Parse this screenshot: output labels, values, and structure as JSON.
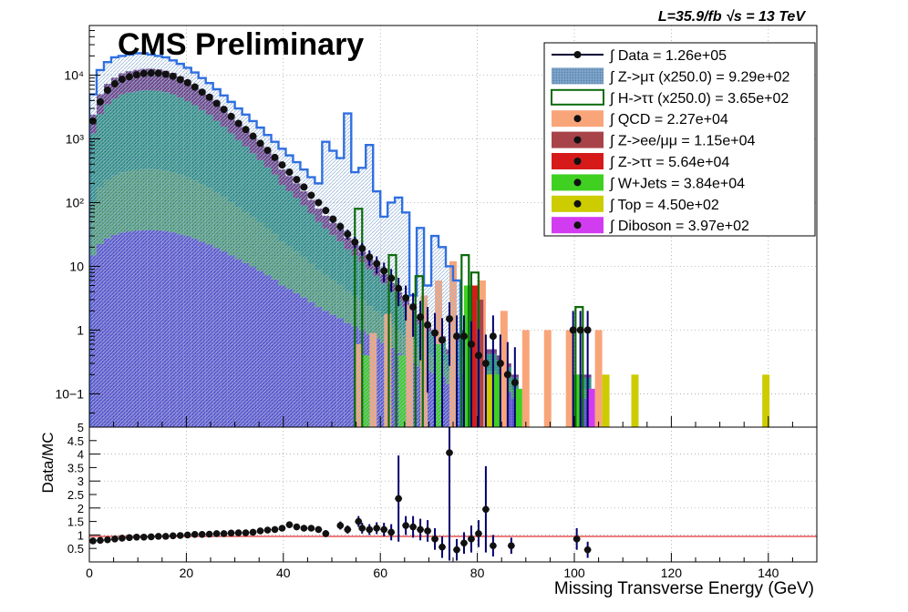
{
  "header": {
    "cms_label": "CMS Preliminary",
    "lumi_label": "L=35.9/fb  √s = 13 TeV"
  },
  "chart_data": [
    {
      "type": "bar",
      "panel": "main",
      "yscale": "log",
      "ylim": [
        0.03,
        60000
      ],
      "xlim": [
        0,
        150
      ],
      "bin_width": 1.5,
      "y_ticks": [
        "10−1",
        "1",
        "10",
        "10²",
        "10³",
        "10⁴"
      ],
      "grid": true,
      "legend_position": "top-right",
      "legend": [
        {
          "label": "∫ Data = 1.26e+05",
          "style": "data",
          "color": "#000033"
        },
        {
          "label": "∫ Z->μτ (x250.0) = 9.29e+02",
          "style": "hatch",
          "color": "#7ba3c7"
        },
        {
          "label": "∫ H->ττ (x250.0) = 3.65e+02",
          "style": "line",
          "color": "#0b6b0b"
        },
        {
          "label": "∫ QCD = 2.27e+04",
          "style": "fill",
          "color": "#f9a57a"
        },
        {
          "label": "∫ Z->ee/μμ = 1.15e+04",
          "style": "fill",
          "color": "#a8434a"
        },
        {
          "label": "∫ Z->ττ = 5.64e+04",
          "style": "fill",
          "color": "#d61a1a"
        },
        {
          "label": "∫ W+Jets = 3.84e+04",
          "style": "fill",
          "color": "#3fd021"
        },
        {
          "label": "∫ Top = 4.50e+02",
          "style": "fill",
          "color": "#cccc00"
        },
        {
          "label": "∫ Diboson = 3.97e+02",
          "style": "fill",
          "color": "#d23cf0"
        }
      ],
      "stack_fill": {
        "color_bottom": "#6a5ed6",
        "color_middle": "#5aa57a",
        "color_top": "#3a9a86",
        "color_upper": "#7a4a8a"
      },
      "series": [
        {
          "name": "Data",
          "x": [
            0.75,
            2.25,
            3.75,
            5.25,
            6.75,
            8.25,
            9.75,
            11.25,
            12.75,
            14.25,
            15.75,
            17.25,
            18.75,
            20.25,
            21.75,
            23.25,
            24.75,
            26.25,
            27.75,
            29.25,
            30.75,
            32.25,
            33.75,
            35.25,
            36.75,
            38.25,
            39.75,
            41.25,
            42.75,
            44.25,
            45.75,
            47.25,
            48.75,
            50.25,
            51.75,
            53.25,
            54.75,
            56.25,
            57.75,
            59.25,
            60.75,
            62.25,
            63.75,
            65.25,
            66.75,
            68.25,
            69.75,
            71.25,
            72.75,
            74.25,
            75.75,
            77.25,
            78.75,
            80.25,
            81.75,
            83.25,
            84.75,
            86.25,
            87.75,
            99.75,
            101.25,
            102.75
          ],
          "y": [
            1900,
            3800,
            5800,
            7300,
            8600,
            9400,
            10100,
            10600,
            10800,
            10700,
            10300,
            9600,
            8500,
            7600,
            6500,
            5400,
            4500,
            3600,
            2900,
            2250,
            1750,
            1400,
            1100,
            850,
            660,
            510,
            390,
            300,
            230,
            175,
            130,
            100,
            75,
            55,
            42,
            32,
            24,
            19,
            14,
            11,
            8.5,
            6.5,
            4.5,
            3.2,
            2.3,
            1.6,
            1.2,
            0.9,
            0.7,
            1.5,
            0.8,
            0.8,
            0.6,
            0.4,
            0.3,
            0.8,
            0.3,
            0.2,
            0.15,
            1,
            1,
            1
          ]
        },
        {
          "name": "MC stack total",
          "x": [
            0.75,
            2.25,
            3.75,
            5.25,
            6.75,
            8.25,
            9.75,
            11.25,
            12.75,
            14.25,
            15.75,
            17.25,
            18.75,
            20.25,
            21.75,
            23.25,
            24.75,
            26.25,
            27.75,
            29.25,
            30.75,
            32.25,
            33.75,
            35.25,
            36.75,
            38.25,
            39.75,
            41.25,
            42.75,
            44.25,
            45.75,
            47.25,
            48.75,
            50.25,
            51.75,
            53.25,
            54.75,
            56.25,
            57.75,
            59.25,
            60.75,
            62.25,
            63.75,
            65.25,
            66.75,
            68.25,
            69.75,
            71.25,
            72.75,
            74.25,
            75.75,
            77.25,
            78.75,
            80.25,
            81.75,
            83.25,
            84.75,
            86.25,
            87.75,
            99.75,
            101.25,
            102.75
          ],
          "y": [
            2400,
            5000,
            7300,
            9100,
            10700,
            11500,
            12100,
            12500,
            12600,
            12300,
            11700,
            10800,
            9500,
            8300,
            7100,
            5900,
            4900,
            3900,
            3100,
            2400,
            1850,
            1450,
            1120,
            860,
            650,
            490,
            330,
            260,
            200,
            150,
            110,
            80,
            62,
            48,
            38,
            28,
            22,
            17,
            13,
            10,
            7.5,
            5.5,
            3.9,
            3.0,
            2.2,
            1.6,
            1.2,
            1.0,
            0.8,
            0.5,
            0.8,
            1.0,
            0.8,
            0.7,
            0.5,
            0.5,
            0.4,
            0.3,
            0.2,
            0.2,
            0.2,
            0.2
          ]
        },
        {
          "name": "Z->μτ (x250.0)",
          "x": [
            0.75,
            2.25,
            3.75,
            5.25,
            6.75,
            8.25,
            9.75,
            11.25,
            12.75,
            14.25,
            15.75,
            17.25,
            18.75,
            20.25,
            21.75,
            23.25,
            24.75,
            26.25,
            27.75,
            29.25,
            30.75,
            32.25,
            33.75,
            35.25,
            36.75,
            38.25,
            39.75,
            41.25,
            42.75,
            44.25,
            45.75,
            47.25,
            48.75,
            50.25,
            51.75,
            53.25,
            54.75,
            56.25,
            57.75,
            59.25,
            60.75,
            62.25,
            63.75,
            65.25,
            66.75,
            68.25,
            69.75,
            71.25,
            72.75,
            74.25,
            75.75
          ],
          "y": [
            5000,
            12000,
            16000,
            19000,
            20000,
            21000,
            22000,
            22000,
            21000,
            20000,
            19000,
            17000,
            15000,
            13000,
            11000,
            9000,
            7500,
            6000,
            4800,
            3800,
            3000,
            2400,
            1900,
            1500,
            1150,
            900,
            700,
            550,
            430,
            330,
            250,
            200,
            900,
            650,
            500,
            2500,
            300,
            350,
            800,
            150,
            60,
            100,
            120,
            70,
            3.5,
            40,
            5.0,
            30,
            20,
            10.0,
            6.0
          ]
        },
        {
          "name": "H->ττ (x250.0)",
          "x": [
            55.5,
            62.5,
            68.0,
            77.5,
            79.5,
            101.0
          ],
          "y": [
            80,
            15,
            7,
            15,
            8,
            2.3
          ]
        }
      ]
    },
    {
      "type": "scatter",
      "panel": "ratio",
      "ylabel": "Data/MC",
      "xlabel": "Missing Transverse Energy (GeV)",
      "xlim": [
        0,
        150
      ],
      "ylim": [
        0,
        5
      ],
      "reference_line": 1,
      "x_ticks": [
        "0",
        "20",
        "40",
        "60",
        "80",
        "100",
        "120",
        "140"
      ],
      "y_ticks": [
        "0.5",
        "1",
        "1.5",
        "2",
        "2.5",
        "3",
        "3.5",
        "4",
        "4.5",
        "5"
      ],
      "series": [
        {
          "name": "Data/MC",
          "x": [
            0.75,
            2.25,
            3.75,
            5.25,
            6.75,
            8.25,
            9.75,
            11.25,
            12.75,
            14.25,
            15.75,
            17.25,
            18.75,
            20.25,
            21.75,
            23.25,
            24.75,
            26.25,
            27.75,
            29.25,
            30.75,
            32.25,
            33.75,
            35.25,
            36.75,
            38.25,
            39.75,
            41.25,
            42.75,
            44.25,
            45.75,
            47.25,
            48.75,
            51.75,
            53.25,
            55.5,
            56.25,
            57.75,
            59.25,
            60.75,
            62.25,
            63.75,
            65.25,
            66.75,
            68.25,
            69.75,
            71.25,
            72.75,
            74.25,
            75.75,
            77.25,
            78.75,
            80.25,
            81.75,
            83.25,
            87.0,
            100.5,
            102.75
          ],
          "y": [
            0.78,
            0.8,
            0.82,
            0.85,
            0.88,
            0.9,
            0.92,
            0.92,
            0.93,
            0.95,
            0.95,
            0.97,
            0.98,
            1.0,
            1.02,
            1.02,
            1.03,
            1.05,
            1.05,
            1.07,
            1.08,
            1.08,
            1.1,
            1.15,
            1.18,
            1.2,
            1.25,
            1.38,
            1.3,
            1.25,
            1.25,
            1.2,
            1.05,
            1.35,
            1.2,
            1.5,
            1.25,
            1.2,
            1.25,
            1.2,
            1.1,
            2.35,
            1.35,
            1.3,
            1.2,
            1.15,
            0.85,
            0.55,
            4.05,
            0.45,
            0.7,
            0.85,
            1.05,
            1.95,
            0.6,
            0.6,
            0.85,
            0.45
          ],
          "yerr": [
            0.02,
            0.02,
            0.02,
            0.02,
            0.02,
            0.02,
            0.02,
            0.02,
            0.02,
            0.02,
            0.02,
            0.02,
            0.02,
            0.02,
            0.02,
            0.02,
            0.02,
            0.03,
            0.03,
            0.03,
            0.03,
            0.04,
            0.04,
            0.05,
            0.05,
            0.06,
            0.07,
            0.08,
            0.09,
            0.1,
            0.1,
            0.12,
            0.13,
            0.15,
            0.15,
            0.2,
            0.2,
            0.2,
            0.22,
            0.25,
            0.3,
            1.6,
            0.35,
            0.4,
            0.4,
            0.4,
            0.4,
            0.4,
            4.0,
            0.4,
            0.4,
            0.5,
            0.5,
            1.6,
            0.4,
            0.3,
            0.4,
            0.3
          ]
        }
      ]
    }
  ]
}
